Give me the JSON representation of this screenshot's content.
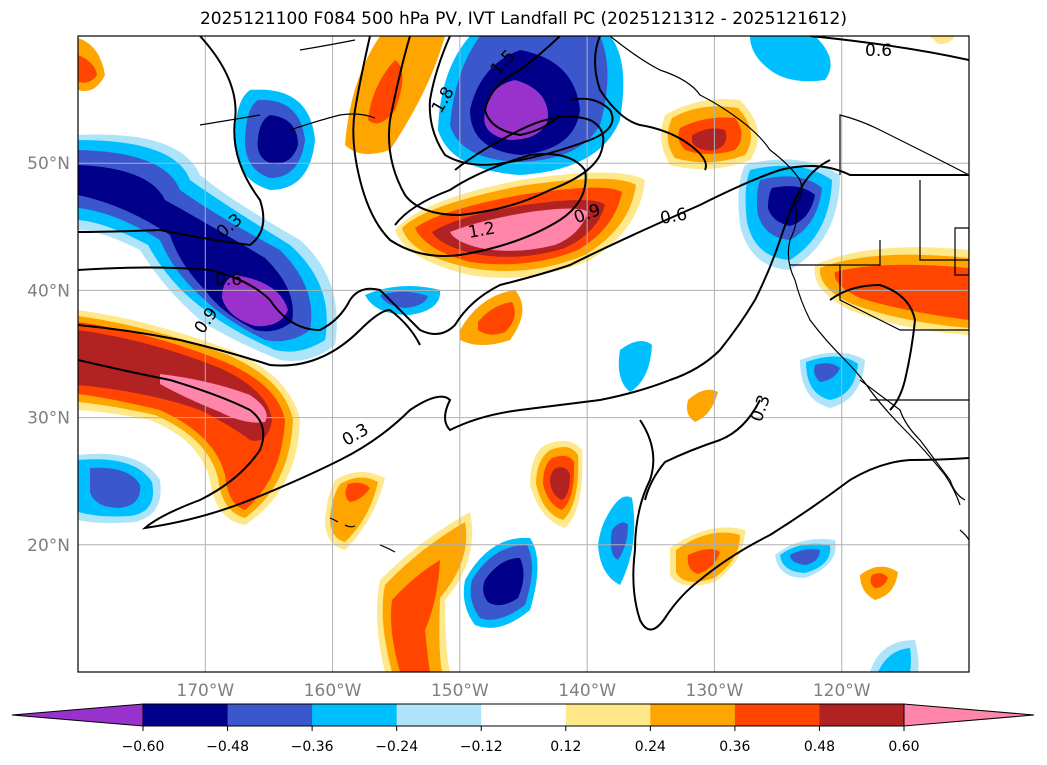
{
  "title": "2025121100 F084 500 hPa PV, IVT Landfall PC (2025121312 - 2025121612)",
  "map": {
    "lon_range": [
      -180,
      -110
    ],
    "lat_range": [
      10,
      60
    ],
    "lat_labels": [
      {
        "text": "50°N",
        "lat": 50
      },
      {
        "text": "40°N",
        "lat": 40
      },
      {
        "text": "30°N",
        "lat": 30
      },
      {
        "text": "20°N",
        "lat": 20
      }
    ],
    "lon_labels": [
      {
        "text": "170°W",
        "lon": -170
      },
      {
        "text": "160°W",
        "lon": -160
      },
      {
        "text": "150°W",
        "lon": -150
      },
      {
        "text": "140°W",
        "lon": -140
      },
      {
        "text": "130°W",
        "lon": -130
      },
      {
        "text": "120°W",
        "lon": -120
      }
    ],
    "contour_labels": [
      "0.6",
      "1.5",
      "1.8",
      "1.2",
      "0.9",
      "0.6",
      "0.3",
      "0.6",
      "0.9",
      "0.3",
      "0.3"
    ]
  },
  "colorbar": {
    "ticks": [
      "−0.60",
      "−0.48",
      "−0.36",
      "−0.24",
      "−0.12",
      "0.12",
      "0.24",
      "0.36",
      "0.48",
      "0.60"
    ],
    "colors": [
      "#9932cc",
      "#00008b",
      "#3a57cc",
      "#00bfff",
      "#aee4fa",
      "#ffffff",
      "#ffe88a",
      "#ffa500",
      "#ff4500",
      "#b22222",
      "#ff85aa",
      "#ff85aa"
    ]
  }
}
